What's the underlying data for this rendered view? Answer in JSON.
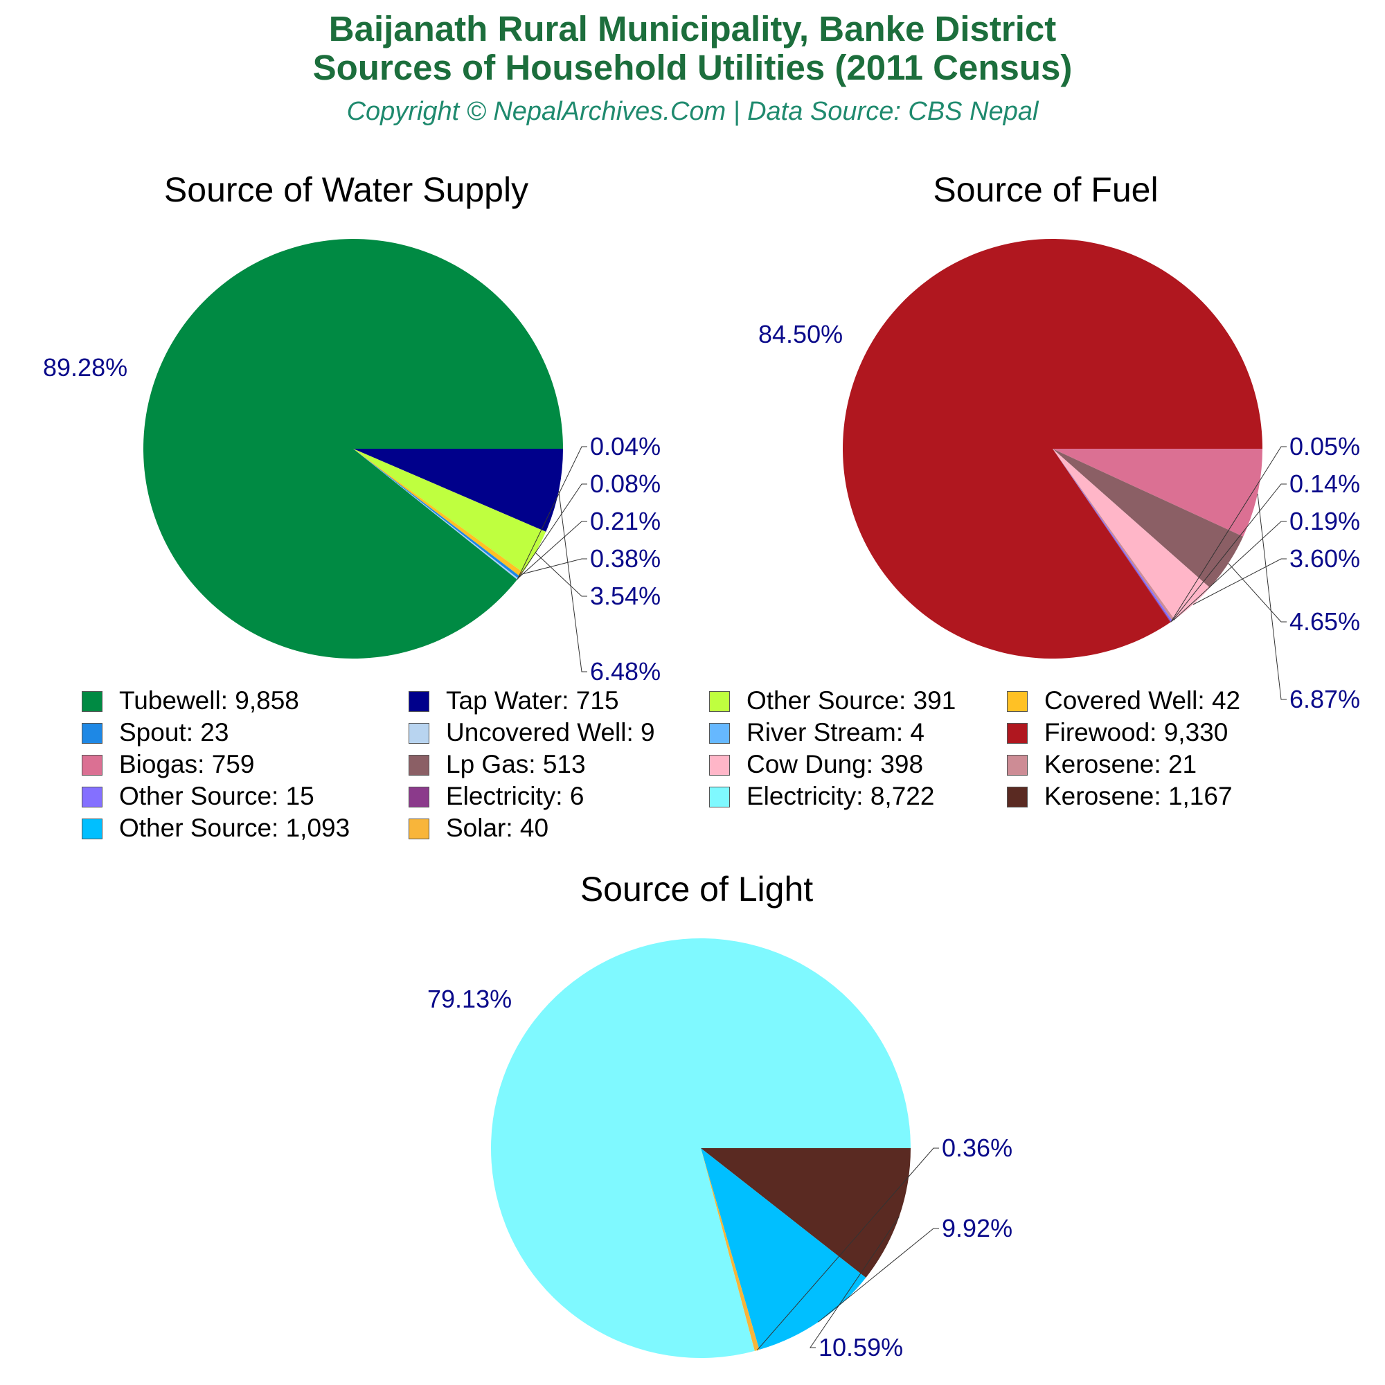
{
  "header": {
    "title_line1": "Baijanath Rural Municipality, Banke District",
    "title_line2": "Sources of Household Utilities (2011 Census)",
    "subtitle": "Copyright © NepalArchives.Com | Data Source: CBS Nepal"
  },
  "colors": {
    "title": "#1c6e3c",
    "subtitle": "#1f8a6e",
    "percent_label": "#0a0a8a"
  },
  "chart_data": [
    {
      "type": "pie",
      "title": "Source of Water Supply",
      "slices": [
        {
          "label": "Tubewell",
          "value": 9858,
          "percent_label": "89.28%",
          "color": "#008a43"
        },
        {
          "label": "Tap Water",
          "value": 715,
          "percent_label": "6.48%",
          "color": "#00008b"
        },
        {
          "label": "Other Source",
          "value": 391,
          "percent_label": "3.54%",
          "color": "#bfff3f"
        },
        {
          "label": "Covered Well",
          "value": 42,
          "percent_label": "0.38%",
          "color": "#ffc125"
        },
        {
          "label": "Spout",
          "value": 23,
          "percent_label": "0.21%",
          "color": "#1e88e5"
        },
        {
          "label": "Uncovered Well",
          "value": 9,
          "percent_label": "0.08%",
          "color": "#b8d4f0"
        },
        {
          "label": "River Stream",
          "value": 4,
          "percent_label": "0.04%",
          "color": "#66b8ff"
        }
      ]
    },
    {
      "type": "pie",
      "title": "Source of Fuel",
      "slices": [
        {
          "label": "Firewood",
          "value": 9330,
          "percent_label": "84.50%",
          "color": "#b0171f"
        },
        {
          "label": "Biogas",
          "value": 759,
          "percent_label": "6.87%",
          "color": "#db7093"
        },
        {
          "label": "Lp Gas",
          "value": 513,
          "percent_label": "4.65%",
          "color": "#8b5f65"
        },
        {
          "label": "Cow Dung",
          "value": 398,
          "percent_label": "3.60%",
          "color": "#ffb6c8"
        },
        {
          "label": "Kerosene",
          "value": 21,
          "percent_label": "0.19%",
          "color": "#cd8c95"
        },
        {
          "label": "Other Source",
          "value": 15,
          "percent_label": "0.14%",
          "color": "#8470ff"
        },
        {
          "label": "Electricity",
          "value": 6,
          "percent_label": "0.05%",
          "color": "#8b3a8b"
        }
      ]
    },
    {
      "type": "pie",
      "title": "Source of Light",
      "slices": [
        {
          "label": "Electricity",
          "value": 8722,
          "percent_label": "79.13%",
          "color": "#7ff9ff"
        },
        {
          "label": "Kerosene",
          "value": 1167,
          "percent_label": "10.59%",
          "color": "#5a2a22"
        },
        {
          "label": "Other Source",
          "value": 1093,
          "percent_label": "9.92%",
          "color": "#00bfff"
        },
        {
          "label": "Solar",
          "value": 40,
          "percent_label": "0.36%",
          "color": "#f8b53a"
        }
      ]
    }
  ],
  "legend": [
    {
      "label": "Tubewell: 9,858",
      "color": "#008a43"
    },
    {
      "label": "Tap Water: 715",
      "color": "#00008b"
    },
    {
      "label": "Other Source: 391",
      "color": "#bfff3f"
    },
    {
      "label": "Covered Well: 42",
      "color": "#ffc125"
    },
    {
      "label": "Spout: 23",
      "color": "#1e88e5"
    },
    {
      "label": "Uncovered Well: 9",
      "color": "#b8d4f0"
    },
    {
      "label": "River Stream: 4",
      "color": "#66b8ff"
    },
    {
      "label": "Firewood: 9,330",
      "color": "#b0171f"
    },
    {
      "label": "Biogas: 759",
      "color": "#db7093"
    },
    {
      "label": "Lp Gas: 513",
      "color": "#8b5f65"
    },
    {
      "label": "Cow Dung: 398",
      "color": "#ffb6c8"
    },
    {
      "label": "Kerosene: 21",
      "color": "#cd8c95"
    },
    {
      "label": "Other Source: 15",
      "color": "#8470ff"
    },
    {
      "label": "Electricity: 6",
      "color": "#8b3a8b"
    },
    {
      "label": "Electricity: 8,722",
      "color": "#7ff9ff"
    },
    {
      "label": "Kerosene: 1,167",
      "color": "#5a2a22"
    },
    {
      "label": "Other Source: 1,093",
      "color": "#00bfff"
    },
    {
      "label": "Solar: 40",
      "color": "#f8b53a"
    }
  ]
}
